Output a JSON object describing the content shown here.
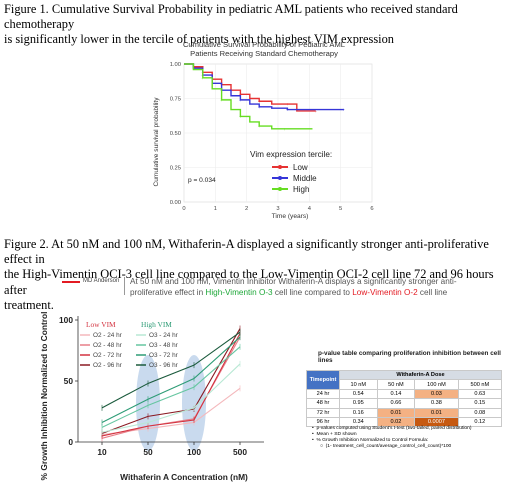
{
  "figure1": {
    "caption_line1": "Figure 1. Cumulative Survival Probability in pediatric AML patients who received standard chemotherapy",
    "caption_line2": "is significantly lower in the tercile of patients with the highest VIM expression",
    "chart_data": {
      "type": "line",
      "title": "Cumulative Survival Probability of Pediatric AML Patients Receiving Standard Chemotherapy",
      "title_line1": "Cumulative Survival Probability of Pediatric AML",
      "title_line2": "Patients Receiving Standard Chemotherapy",
      "xlabel": "Time (years)",
      "ylabel": "Cumulative survival probability",
      "xlim": [
        0,
        6
      ],
      "ylim": [
        0,
        1
      ],
      "x_ticks": [
        "0",
        "1",
        "2",
        "3",
        "4",
        "5",
        "6"
      ],
      "y_ticks": [
        "0.00",
        "0.25",
        "0.50",
        "0.75",
        "1.00"
      ],
      "pvalue_text": "p = 0.034",
      "legend_title": "Vim expression tercile:",
      "legend_position": "right",
      "series": [
        {
          "name": "Low",
          "color": "#e63232",
          "points": [
            [
              0,
              1
            ],
            [
              0.3,
              0.98
            ],
            [
              0.6,
              0.94
            ],
            [
              0.9,
              0.89
            ],
            [
              1.2,
              0.85
            ],
            [
              1.5,
              0.81
            ],
            [
              1.8,
              0.78
            ],
            [
              2.1,
              0.75
            ],
            [
              2.4,
              0.73
            ],
            [
              2.8,
              0.71
            ],
            [
              3.3,
              0.71
            ],
            [
              3.6,
              0.66
            ],
            [
              4.2,
              0.66
            ]
          ]
        },
        {
          "name": "Middle",
          "color": "#3535d8",
          "points": [
            [
              0,
              1
            ],
            [
              0.3,
              0.97
            ],
            [
              0.6,
              0.92
            ],
            [
              0.9,
              0.86
            ],
            [
              1.2,
              0.81
            ],
            [
              1.5,
              0.77
            ],
            [
              1.8,
              0.74
            ],
            [
              2.1,
              0.71
            ],
            [
              2.4,
              0.69
            ],
            [
              2.8,
              0.68
            ],
            [
              3.3,
              0.67
            ],
            [
              4,
              0.67
            ],
            [
              5.1,
              0.67
            ]
          ]
        },
        {
          "name": "High",
          "color": "#66dd22",
          "points": [
            [
              0,
              1
            ],
            [
              0.3,
              0.96
            ],
            [
              0.6,
              0.9
            ],
            [
              0.9,
              0.82
            ],
            [
              1.2,
              0.74
            ],
            [
              1.5,
              0.67
            ],
            [
              1.8,
              0.62
            ],
            [
              2.1,
              0.58
            ],
            [
              2.4,
              0.55
            ],
            [
              2.8,
              0.53
            ],
            [
              3.2,
              0.53
            ],
            [
              4.1,
              0.53
            ]
          ]
        }
      ]
    }
  },
  "figure2": {
    "caption_line1": "Figure 2. At 50 nM and 100 nM, Withaferin-A displayed a significantly stronger anti-proliferative effect in",
    "caption_line2": "the High-Vimentin OCI-3 cell line compared to the Low-Vimentin OCI-2 cell line 72 and 96 hours after",
    "caption_line3": "treatment.",
    "header": {
      "brand": "MD Anderson",
      "line1_a": "At 50 nM and 100 nM, Vimentin Inhibitor Withaferin-A displays a significantly stronger anti-",
      "line2_a": "proliferative effect in ",
      "line2_high": "High-Vimentin O-3",
      "line2_b": " cell line compared to ",
      "line2_low": "Low-Vimentin O-2",
      "line2_c": " cell line",
      "accent_red": "#e31b23",
      "accent_green": "#1fa83a"
    },
    "chart_data": {
      "type": "line",
      "xlabel": "Withaferin A Concentration (nM)",
      "ylabel": "% Growth Inhibition Normalized to Control",
      "categories": [
        "10",
        "50",
        "100",
        "500"
      ],
      "ylim": [
        0,
        100
      ],
      "y_ticks": [
        "0",
        "50",
        "100"
      ],
      "group_low_label": "Low VIM",
      "group_high_label": "High VIM",
      "highlight_categories": [
        "50",
        "100"
      ],
      "series": [
        {
          "name": "O2 - 24 hr",
          "color": "#f4b8bc",
          "values": [
            6,
            11,
            16,
            44
          ]
        },
        {
          "name": "O2 - 48 hr",
          "color": "#e77f89",
          "values": [
            3,
            13,
            19,
            86
          ]
        },
        {
          "name": "O2 - 72 hr",
          "color": "#d33340",
          "values": [
            5,
            13,
            18,
            89
          ]
        },
        {
          "name": "O2 - 96 hr",
          "color": "#8a1a22",
          "values": [
            7,
            21,
            27,
            93
          ]
        },
        {
          "name": "O3 - 24 hr",
          "color": "#b8e8d4",
          "values": [
            8,
            16,
            28,
            64
          ]
        },
        {
          "name": "O3 - 48 hr",
          "color": "#66c6a1",
          "values": [
            12,
            30,
            45,
            78
          ]
        },
        {
          "name": "O3 - 72 hr",
          "color": "#2e9c76",
          "values": [
            16,
            35,
            52,
            86
          ]
        },
        {
          "name": "O3 - 96 hr",
          "color": "#1a5a3c",
          "values": [
            28,
            48,
            63,
            90
          ]
        }
      ]
    },
    "pvalue_table": {
      "title": "p-value table comparing proliferation inhibition between cell lines",
      "group_header": "Withaferin-A Dose",
      "corner_header": "Timepoint",
      "columns": [
        "10 nM",
        "50 nM",
        "100 nM",
        "500 nM"
      ],
      "rows": [
        {
          "time": "24 hr",
          "values": [
            "0.54",
            "0.14",
            "0.03",
            "0.63"
          ]
        },
        {
          "time": "48 hr",
          "values": [
            "0.95",
            "0.66",
            "0.38",
            "0.15"
          ]
        },
        {
          "time": "72 hr",
          "values": [
            "0.16",
            "0.01",
            "0.01",
            "0.08"
          ]
        },
        {
          "time": "96 hr",
          "values": [
            "0.34",
            "0.02",
            "0.0007",
            "0.12"
          ]
        }
      ],
      "header_color": "#4472c4",
      "highlight_light": "#f4b183",
      "highlight_dark": "#c65911",
      "notes": [
        "p-values computed using Student's t-test (two-tailed, paired distribution)",
        "Mean + SD shown",
        "% Growth Inhibition Normalized to Control Formula:"
      ],
      "formula": "(1- treatment_cell_count/average_control_cell_count)*100"
    }
  }
}
